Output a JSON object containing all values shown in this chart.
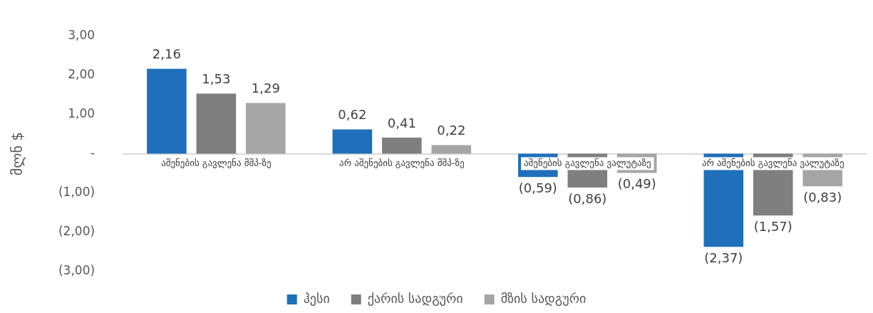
{
  "chart_data": {
    "type": "bar",
    "ylabel": "მლნ $",
    "categories": [
      "აშენების გავლენა მშპ-ზე",
      "არ აშენების გავლენა მშპ-ზე",
      "აშენების გავლენა ვალუტაზე",
      "არ აშენების გავლენა ვალუტაზე"
    ],
    "series": [
      {
        "name": "ჰესი",
        "color": "#1f6fba",
        "values": [
          2.16,
          0.62,
          -0.59,
          -2.37
        ],
        "value_labels": [
          "2,16",
          "0,62",
          "(0,59)",
          "(2,37)"
        ]
      },
      {
        "name": "ქარის სადგური",
        "color": "#7f7f7f",
        "values": [
          1.53,
          0.41,
          -0.86,
          -1.57
        ],
        "value_labels": [
          "1,53",
          "0,41",
          "(0,86)",
          "(1,57)"
        ]
      },
      {
        "name": "მზის სადგური",
        "color": "#a5a5a5",
        "values": [
          1.29,
          0.22,
          -0.49,
          -0.83
        ],
        "value_labels": [
          "1,29",
          "0,22",
          "(0,49)",
          "(0,83)"
        ]
      }
    ],
    "ylim": [
      -3,
      3
    ],
    "yticks": [
      {
        "value": -3,
        "label": "(3,00)"
      },
      {
        "value": -2,
        "label": "(2,00)"
      },
      {
        "value": -1,
        "label": "(1,00)"
      },
      {
        "value": 0,
        "label": "-"
      },
      {
        "value": 1,
        "label": "1,00"
      },
      {
        "value": 2,
        "label": "2,00"
      },
      {
        "value": 3,
        "label": "3,00"
      }
    ],
    "legend": "bottom",
    "grid": false
  }
}
